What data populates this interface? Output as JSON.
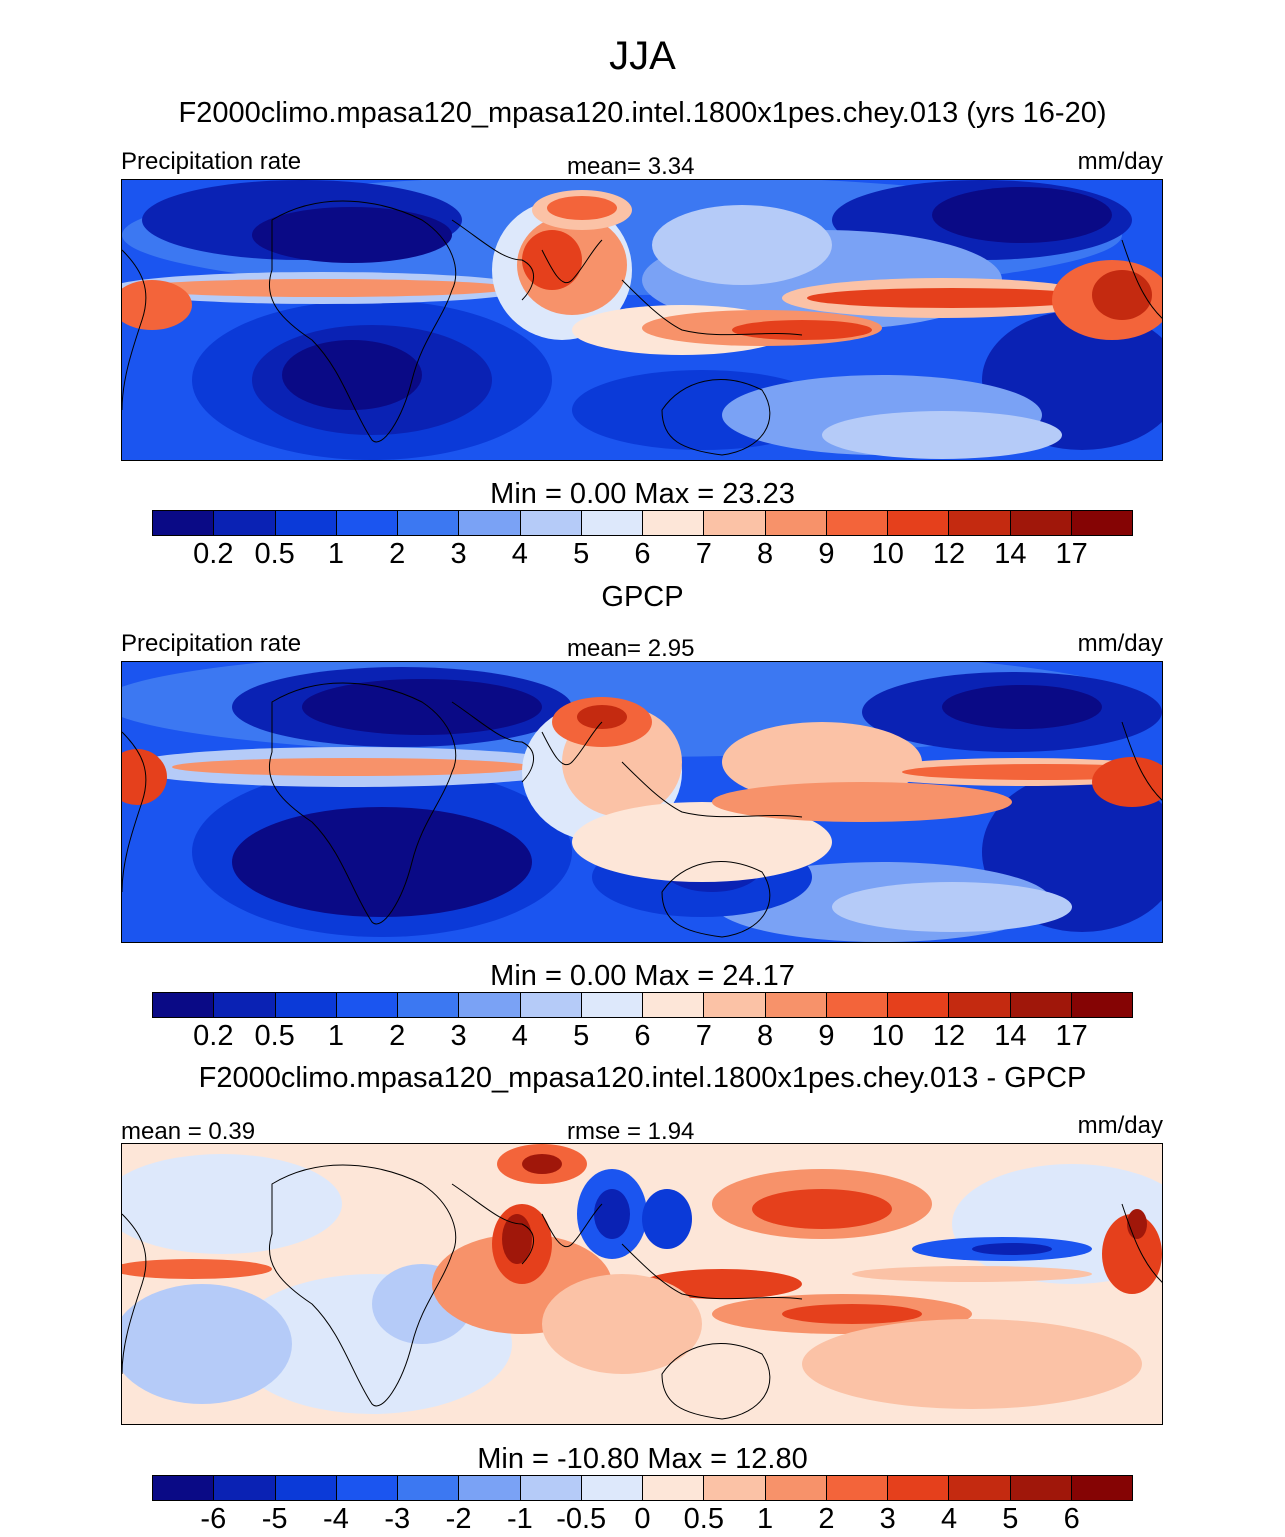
{
  "figure": {
    "season": "JJA"
  },
  "panels": [
    {
      "title": "F2000climo.mpasa120_mpasa120.intel.1800x1pes.chey.013 (yrs 16-20)",
      "left_label": "Precipitation rate",
      "center_label": "mean=   3.34",
      "right_label": "mm/day",
      "minmax": "Min =   0.00 Max =  23.23",
      "colorbar_ticks": [
        "0.2",
        "0.5",
        "1",
        "2",
        "3",
        "4",
        "5",
        "6",
        "7",
        "8",
        "9",
        "10",
        "12",
        "14",
        "17"
      ]
    },
    {
      "title": "GPCP",
      "left_label": "Precipitation rate",
      "center_label": "mean=   2.95",
      "right_label": "mm/day",
      "minmax": "Min =   0.00 Max =  24.17",
      "colorbar_ticks": [
        "0.2",
        "0.5",
        "1",
        "2",
        "3",
        "4",
        "5",
        "6",
        "7",
        "8",
        "9",
        "10",
        "12",
        "14",
        "17"
      ]
    },
    {
      "title": "F2000climo.mpasa120_mpasa120.intel.1800x1pes.chey.013 - GPCP",
      "left_label": "mean =   0.39",
      "center_label": "rmse =   1.94",
      "right_label": "mm/day",
      "minmax": "Min = -10.80 Max =  12.80",
      "colorbar_ticks": [
        "-6",
        "-5",
        "-4",
        "-3",
        "-2",
        "-1",
        "-0.5",
        "0",
        "0.5",
        "1",
        "2",
        "3",
        "4",
        "5",
        "6"
      ]
    }
  ],
  "palette": [
    "#0a0a86",
    "#0a22b4",
    "#0b3ad8",
    "#1b55f0",
    "#3c78f2",
    "#7aa2f5",
    "#b5cbf8",
    "#dde8fb",
    "#fde6d8",
    "#fbc2a6",
    "#f7926a",
    "#f3643a",
    "#e5401c",
    "#c42a10",
    "#a0170a",
    "#850404"
  ]
}
